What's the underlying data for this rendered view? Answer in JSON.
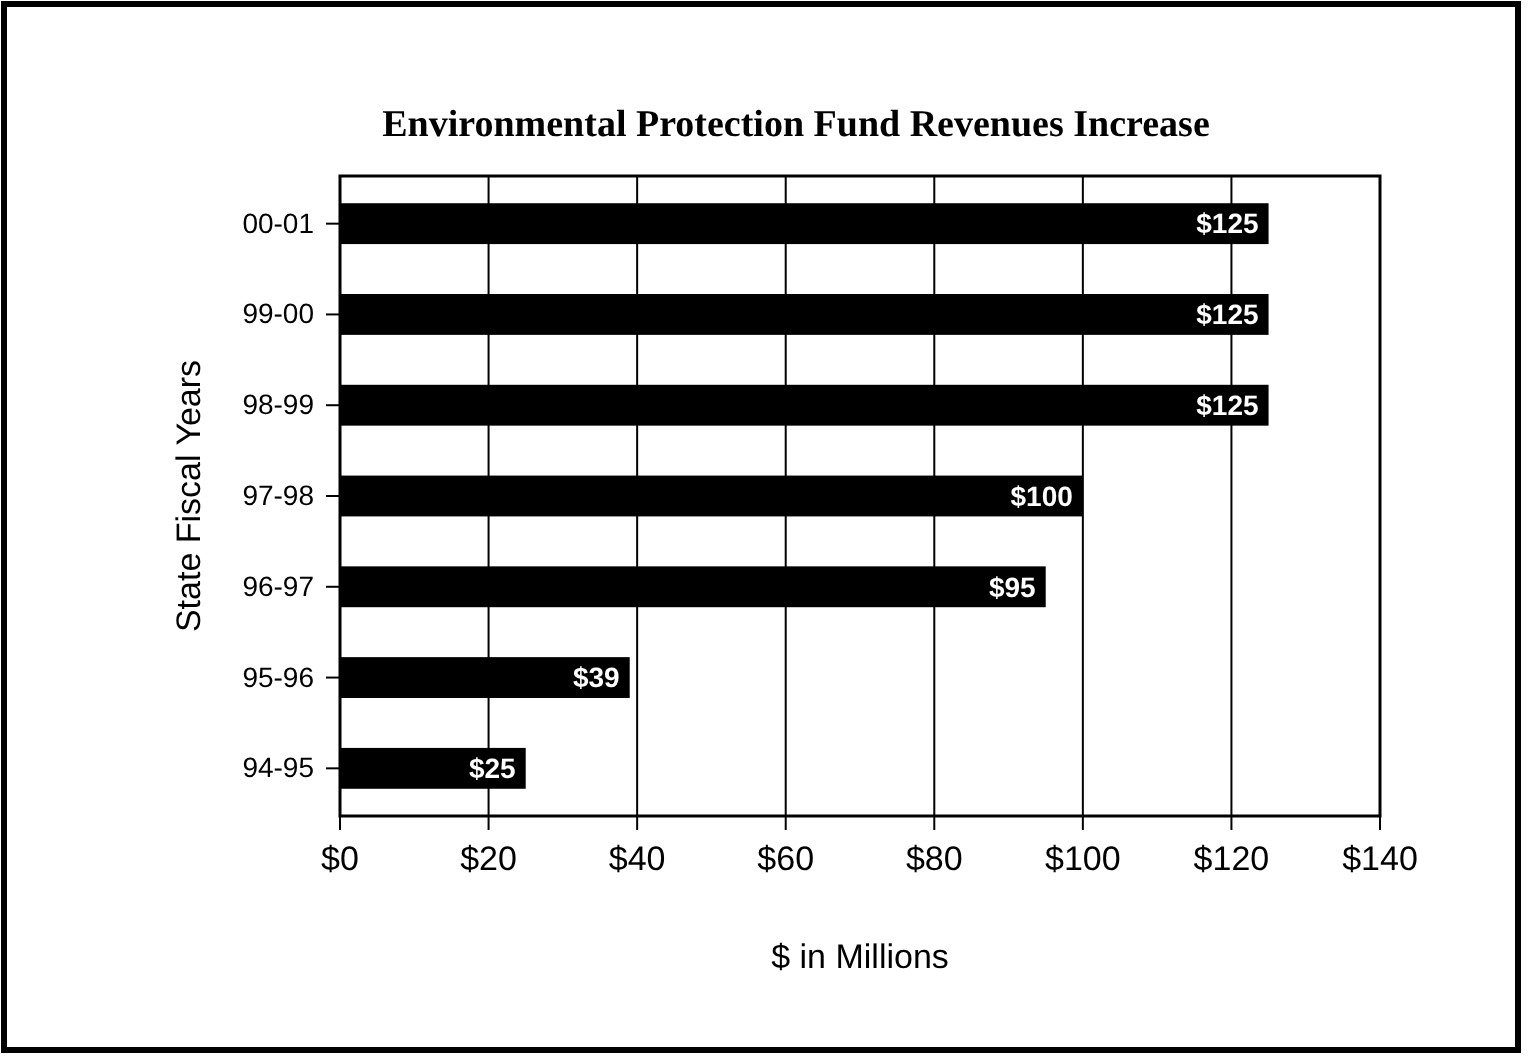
{
  "chart_data": {
    "type": "bar",
    "orientation": "horizontal",
    "title": "Environmental Protection Fund Revenues Increase",
    "xlabel": "$ in Millions",
    "ylabel": "State Fiscal Years",
    "categories": [
      "00-01",
      "99-00",
      "98-99",
      "97-98",
      "96-97",
      "95-96",
      "94-95"
    ],
    "values": [
      125,
      125,
      125,
      100,
      95,
      39,
      25
    ],
    "value_labels": [
      "$125",
      "$125",
      "$125",
      "$100",
      "$95",
      "$39",
      "$25"
    ],
    "color": "#000000",
    "xlim": [
      0,
      140
    ],
    "xticks": [
      {
        "value": 0,
        "label": "$0"
      },
      {
        "value": 20,
        "label": "$20"
      },
      {
        "value": 40,
        "label": "$40"
      },
      {
        "value": 60,
        "label": "$60"
      },
      {
        "value": 80,
        "label": "$80"
      },
      {
        "value": 100,
        "label": "$100"
      },
      {
        "value": 120,
        "label": "$120"
      },
      {
        "value": 140,
        "label": "$140"
      }
    ],
    "grid": "x"
  }
}
